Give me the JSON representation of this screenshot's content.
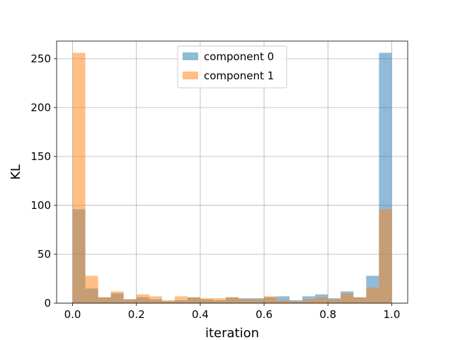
{
  "chart_data": {
    "type": "bar",
    "title": "",
    "xlabel": "iteration",
    "ylabel": "KL",
    "xlim": [
      -0.05,
      1.05
    ],
    "ylim": [
      0,
      268
    ],
    "xticks": [
      "0.0",
      "0.2",
      "0.4",
      "0.6",
      "0.8",
      "1.0"
    ],
    "yticks": [
      "0",
      "50",
      "100",
      "150",
      "200",
      "250"
    ],
    "grid": true,
    "legend_position": "top-center",
    "bin_edges": [
      0.0,
      0.04,
      0.08,
      0.12,
      0.16,
      0.2,
      0.24,
      0.28,
      0.32,
      0.36,
      0.4,
      0.44,
      0.48,
      0.52,
      0.56,
      0.6,
      0.64,
      0.68,
      0.72,
      0.76,
      0.8,
      0.84,
      0.88,
      0.92,
      0.96,
      1.0
    ],
    "series": [
      {
        "name": "component 0",
        "color": "#1f77b4",
        "opacity": 0.5,
        "values": [
          96,
          15,
          6,
          10,
          4,
          6,
          4,
          2,
          3,
          6,
          4,
          3,
          6,
          5,
          5,
          6,
          7,
          3,
          7,
          9,
          5,
          12,
          6,
          28,
          256
        ]
      },
      {
        "name": "component 1",
        "color": "#ff7f0e",
        "opacity": 0.5,
        "values": [
          256,
          28,
          6,
          12,
          4,
          9,
          7,
          3,
          7,
          6,
          5,
          5,
          6,
          4,
          4,
          7,
          3,
          2,
          4,
          6,
          4,
          10,
          6,
          16,
          96
        ]
      }
    ]
  }
}
